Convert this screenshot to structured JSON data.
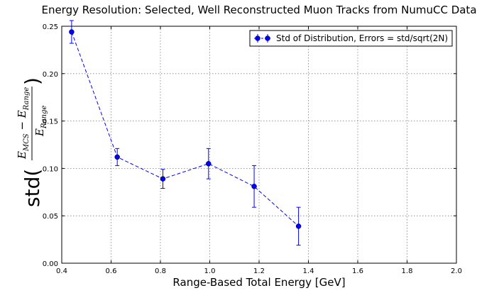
{
  "chart_data": {
    "type": "scatter",
    "title": "Energy Resolution: Selected, Well Reconstructed Muon Tracks from NumuCC Data",
    "xlabel": "Range-Based Total Energy [GeV]",
    "ylabel": {
      "func": "std(",
      "num_main": "E",
      "num_sub1": "MCS",
      "num_minus": " − E",
      "num_sub2": "Range",
      "den_main": "E",
      "den_sub": "Range",
      "close": ")"
    },
    "xlim": [
      0.4,
      2.0
    ],
    "ylim": [
      0.0,
      0.25
    ],
    "xticks": [
      "0.4",
      "0.6",
      "0.8",
      "1.0",
      "1.2",
      "1.4",
      "1.6",
      "1.8",
      "2.0"
    ],
    "yticks": [
      "0.00",
      "0.05",
      "0.10",
      "0.15",
      "0.20",
      "0.25"
    ],
    "grid": true,
    "legend_position": "top-right",
    "series": [
      {
        "name": "Std of Distribution, Errors = std/sqrt(2N)",
        "color": "#0000ff",
        "line_style": "dashed",
        "marker": "circle",
        "x": [
          0.44,
          0.625,
          0.81,
          0.995,
          1.18,
          1.36
        ],
        "y": [
          0.244,
          0.112,
          0.089,
          0.105,
          0.081,
          0.039
        ],
        "yerr": [
          0.012,
          0.009,
          0.01,
          0.016,
          0.022,
          0.02
        ]
      }
    ]
  }
}
